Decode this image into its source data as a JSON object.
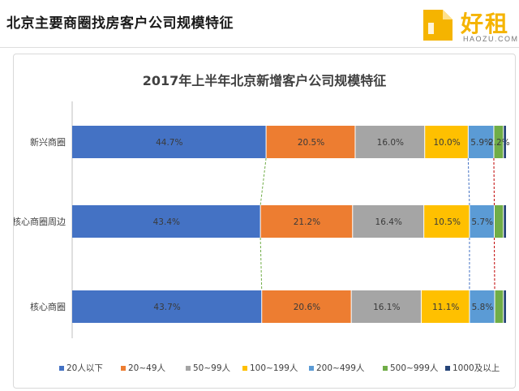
{
  "header": {
    "title": "北京主要商圈找房客户公司规模特征",
    "logo_text": "好租",
    "logo_sub": "HAOZU.COM"
  },
  "colors": {
    "logo": "#f5b400",
    "series": [
      "#4472c4",
      "#ed7d31",
      "#a5a5a5",
      "#ffc000",
      "#5b9bd5",
      "#70ad47",
      "#264478"
    ]
  },
  "chart_data": {
    "type": "bar",
    "orientation": "horizontal",
    "stacked": "percent",
    "title": "2017年上半年北京新增客户公司规模特征",
    "categories": [
      "新兴商圈",
      "核心商圈周边",
      "核心商圈"
    ],
    "series": [
      {
        "name": "20人以下",
        "values": [
          44.7,
          43.4,
          43.7
        ],
        "labels": [
          "44.7%",
          "43.4%",
          "43.7%"
        ]
      },
      {
        "name": "20~49人",
        "values": [
          20.5,
          21.2,
          20.6
        ],
        "labels": [
          "20.5%",
          "21.2%",
          "20.6%"
        ]
      },
      {
        "name": "50~99人",
        "values": [
          16.0,
          16.4,
          16.1
        ],
        "labels": [
          "16.0%",
          "16.4%",
          "16.1%"
        ]
      },
      {
        "name": "100~199人",
        "values": [
          10.0,
          10.5,
          11.1
        ],
        "labels": [
          "10.0%",
          "10.5%",
          "11.1%"
        ]
      },
      {
        "name": "200~499人",
        "values": [
          5.9,
          5.7,
          5.8
        ],
        "labels": [
          "5.9%",
          "5.7%",
          "5.8%"
        ]
      },
      {
        "name": "500~999人",
        "values": [
          2.2,
          2.1,
          2.0
        ],
        "labels": [
          "2.2%",
          "",
          ""
        ]
      },
      {
        "name": "1000及以上",
        "values": [
          0.7,
          0.7,
          0.7
        ],
        "labels": [
          "",
          "",
          ""
        ]
      }
    ],
    "xlim": [
      0,
      100
    ],
    "legend": "bottom",
    "grid": false
  }
}
